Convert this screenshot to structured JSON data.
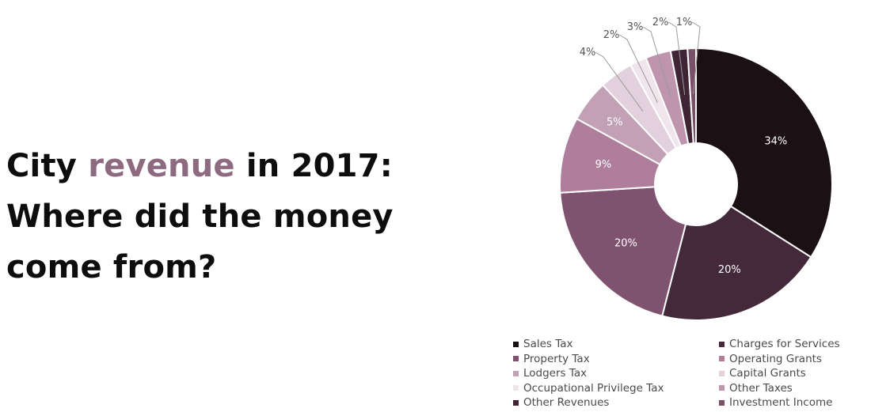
{
  "headline": {
    "line1_prefix": "City ",
    "line1_accent": "revenue",
    "line1_suffix": " in 2017:",
    "line2": "Where did the money",
    "line3": "come from?"
  },
  "colors": {
    "accent": "#8e6a81",
    "headline_text": "#0d0d0d"
  },
  "chart_data": {
    "type": "pie",
    "donut": true,
    "categories": [
      "Sales Tax",
      "Charges for Services",
      "Property Tax",
      "Operating Grants",
      "Lodgers Tax",
      "Capital Grants",
      "Occupational Privilege Tax",
      "Other Taxes",
      "Other Revenues",
      "Investment Income"
    ],
    "values": [
      34,
      20,
      20,
      9,
      5,
      4,
      2,
      3,
      2,
      1
    ],
    "labels": [
      "34%",
      "20%",
      "20%",
      "9%",
      "5%",
      "4%",
      "2%",
      "3%",
      "2%",
      "1%"
    ],
    "colors": [
      "#1b1114",
      "#432939",
      "#7f5370",
      "#ae7e9c",
      "#c2a0b5",
      "#e2d1dc",
      "#efe5eb",
      "#bf95ae",
      "#3f2434",
      "#795068"
    ],
    "label_colors": [
      "#ffffff",
      "#ffffff",
      "#ffffff",
      "#ffffff",
      "#ffffff",
      "#555555",
      "#555555",
      "#555555",
      "#555555",
      "#555555"
    ],
    "legend_position": "bottom"
  }
}
